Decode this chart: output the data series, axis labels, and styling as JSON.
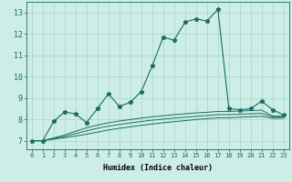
{
  "xlabel": "Humidex (Indice chaleur)",
  "xlim": [
    -0.5,
    23.5
  ],
  "ylim": [
    6.6,
    13.5
  ],
  "yticks": [
    7,
    8,
    9,
    10,
    11,
    12,
    13
  ],
  "xticks": [
    0,
    1,
    2,
    3,
    4,
    5,
    6,
    7,
    8,
    9,
    10,
    11,
    12,
    13,
    14,
    15,
    16,
    17,
    18,
    19,
    20,
    21,
    22,
    23
  ],
  "bg_color": "#cdeee6",
  "grid_color": "#aad4cc",
  "line_color": "#1a6b60",
  "main_line": [
    7.0,
    7.0,
    7.9,
    8.35,
    8.25,
    7.85,
    8.5,
    9.2,
    8.6,
    8.8,
    9.3,
    10.5,
    11.85,
    11.7,
    12.55,
    12.7,
    12.6,
    13.15,
    8.5,
    8.45,
    8.5,
    8.85,
    8.45,
    8.2
  ],
  "smooth_line1": [
    7.0,
    7.0,
    7.07,
    7.14,
    7.22,
    7.3,
    7.4,
    7.5,
    7.58,
    7.65,
    7.72,
    7.78,
    7.84,
    7.89,
    7.94,
    7.99,
    8.03,
    8.07,
    8.07,
    8.1,
    8.12,
    8.14,
    8.05,
    8.05
  ],
  "smooth_line2": [
    7.0,
    7.0,
    7.1,
    7.2,
    7.33,
    7.46,
    7.58,
    7.68,
    7.76,
    7.83,
    7.9,
    7.96,
    8.01,
    8.06,
    8.1,
    8.14,
    8.18,
    8.22,
    8.22,
    8.24,
    8.26,
    8.28,
    8.1,
    8.1
  ],
  "smooth_line3": [
    7.0,
    7.0,
    7.13,
    7.27,
    7.44,
    7.6,
    7.73,
    7.84,
    7.92,
    7.99,
    8.06,
    8.12,
    8.17,
    8.22,
    8.26,
    8.3,
    8.33,
    8.37,
    8.37,
    8.39,
    8.41,
    8.43,
    8.15,
    8.15
  ]
}
